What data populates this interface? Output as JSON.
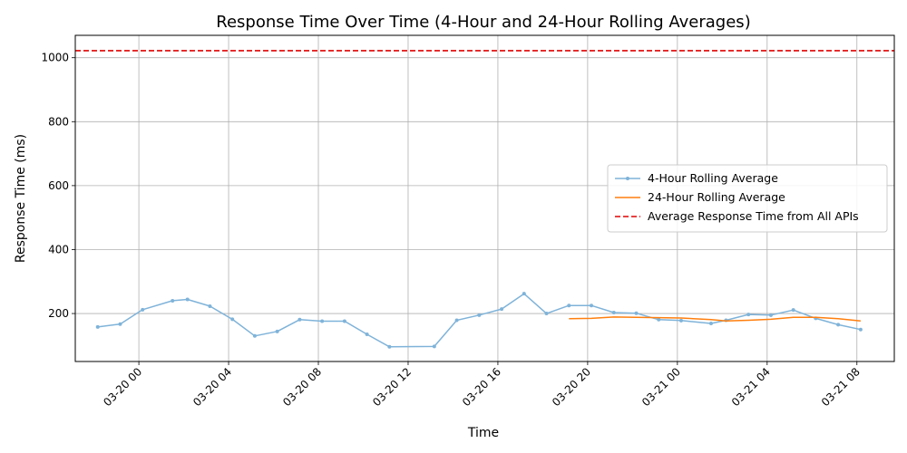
{
  "chart_data": {
    "type": "line",
    "title": "Response Time Over Time (4-Hour and 24-Hour Rolling Averages)",
    "xlabel": "Time",
    "ylabel": "Response Time (ms)",
    "x_range": [
      "2024-03-19 21:10",
      "2024-03-21 09:40"
    ],
    "ylim": [
      50,
      1070
    ],
    "grid": true,
    "legend_position": "center-right",
    "x_ticks": [
      {
        "t": "2024-03-20 00:00",
        "label": "03-20 00"
      },
      {
        "t": "2024-03-20 04:00",
        "label": "03-20 04"
      },
      {
        "t": "2024-03-20 08:00",
        "label": "03-20 08"
      },
      {
        "t": "2024-03-20 12:00",
        "label": "03-20 12"
      },
      {
        "t": "2024-03-20 16:00",
        "label": "03-20 16"
      },
      {
        "t": "2024-03-20 20:00",
        "label": "03-20 20"
      },
      {
        "t": "2024-03-21 00:00",
        "label": "03-21 00"
      },
      {
        "t": "2024-03-21 04:00",
        "label": "03-21 04"
      },
      {
        "t": "2024-03-21 08:00",
        "label": "03-21 08"
      }
    ],
    "y_ticks": [
      200,
      400,
      600,
      800,
      1000
    ],
    "series": [
      {
        "name": "4-Hour Rolling Average",
        "color": "#7fb3d9",
        "style": "line-with-dots",
        "points": [
          {
            "t": "2024-03-19 22:10",
            "y": 158
          },
          {
            "t": "2024-03-19 23:10",
            "y": 167
          },
          {
            "t": "2024-03-20 00:10",
            "y": 212
          },
          {
            "t": "2024-03-20 01:30",
            "y": 240
          },
          {
            "t": "2024-03-20 02:10",
            "y": 244
          },
          {
            "t": "2024-03-20 03:10",
            "y": 223
          },
          {
            "t": "2024-03-20 04:10",
            "y": 182
          },
          {
            "t": "2024-03-20 05:10",
            "y": 130
          },
          {
            "t": "2024-03-20 06:10",
            "y": 144
          },
          {
            "t": "2024-03-20 07:10",
            "y": 181
          },
          {
            "t": "2024-03-20 08:10",
            "y": 176
          },
          {
            "t": "2024-03-20 09:10",
            "y": 176
          },
          {
            "t": "2024-03-20 10:10",
            "y": 135
          },
          {
            "t": "2024-03-20 11:10",
            "y": 96
          },
          {
            "t": "2024-03-20 13:10",
            "y": 97
          },
          {
            "t": "2024-03-20 14:10",
            "y": 179
          },
          {
            "t": "2024-03-20 15:10",
            "y": 195
          },
          {
            "t": "2024-03-20 16:10",
            "y": 214
          },
          {
            "t": "2024-03-20 17:10",
            "y": 262
          },
          {
            "t": "2024-03-20 18:10",
            "y": 200
          },
          {
            "t": "2024-03-20 19:10",
            "y": 225
          },
          {
            "t": "2024-03-20 20:10",
            "y": 225
          },
          {
            "t": "2024-03-20 21:10",
            "y": 203
          },
          {
            "t": "2024-03-20 22:10",
            "y": 201
          },
          {
            "t": "2024-03-20 23:10",
            "y": 181
          },
          {
            "t": "2024-03-21 00:10",
            "y": 178
          },
          {
            "t": "2024-03-21 01:30",
            "y": 169
          },
          {
            "t": "2024-03-21 02:10",
            "y": 179
          },
          {
            "t": "2024-03-21 03:10",
            "y": 197
          },
          {
            "t": "2024-03-21 04:10",
            "y": 195
          },
          {
            "t": "2024-03-21 05:10",
            "y": 211
          },
          {
            "t": "2024-03-21 06:10",
            "y": 185
          },
          {
            "t": "2024-03-21 07:10",
            "y": 165
          },
          {
            "t": "2024-03-21 08:10",
            "y": 150
          }
        ]
      },
      {
        "name": "24-Hour Rolling Average",
        "color": "#ff7f0e",
        "style": "line",
        "points": [
          {
            "t": "2024-03-20 19:10",
            "y": 184
          },
          {
            "t": "2024-03-20 20:10",
            "y": 185
          },
          {
            "t": "2024-03-20 21:10",
            "y": 189
          },
          {
            "t": "2024-03-20 22:10",
            "y": 188
          },
          {
            "t": "2024-03-20 23:10",
            "y": 187
          },
          {
            "t": "2024-03-21 00:10",
            "y": 186
          },
          {
            "t": "2024-03-21 01:30",
            "y": 181
          },
          {
            "t": "2024-03-21 02:10",
            "y": 177
          },
          {
            "t": "2024-03-21 03:10",
            "y": 179
          },
          {
            "t": "2024-03-21 04:10",
            "y": 182
          },
          {
            "t": "2024-03-21 05:10",
            "y": 188
          },
          {
            "t": "2024-03-21 06:10",
            "y": 188
          },
          {
            "t": "2024-03-21 07:10",
            "y": 184
          },
          {
            "t": "2024-03-21 08:10",
            "y": 177
          }
        ]
      }
    ],
    "reference_line": {
      "name": "Average Response Time from All APIs",
      "y": 1022,
      "color": "#e00000",
      "style": "dashed"
    }
  }
}
